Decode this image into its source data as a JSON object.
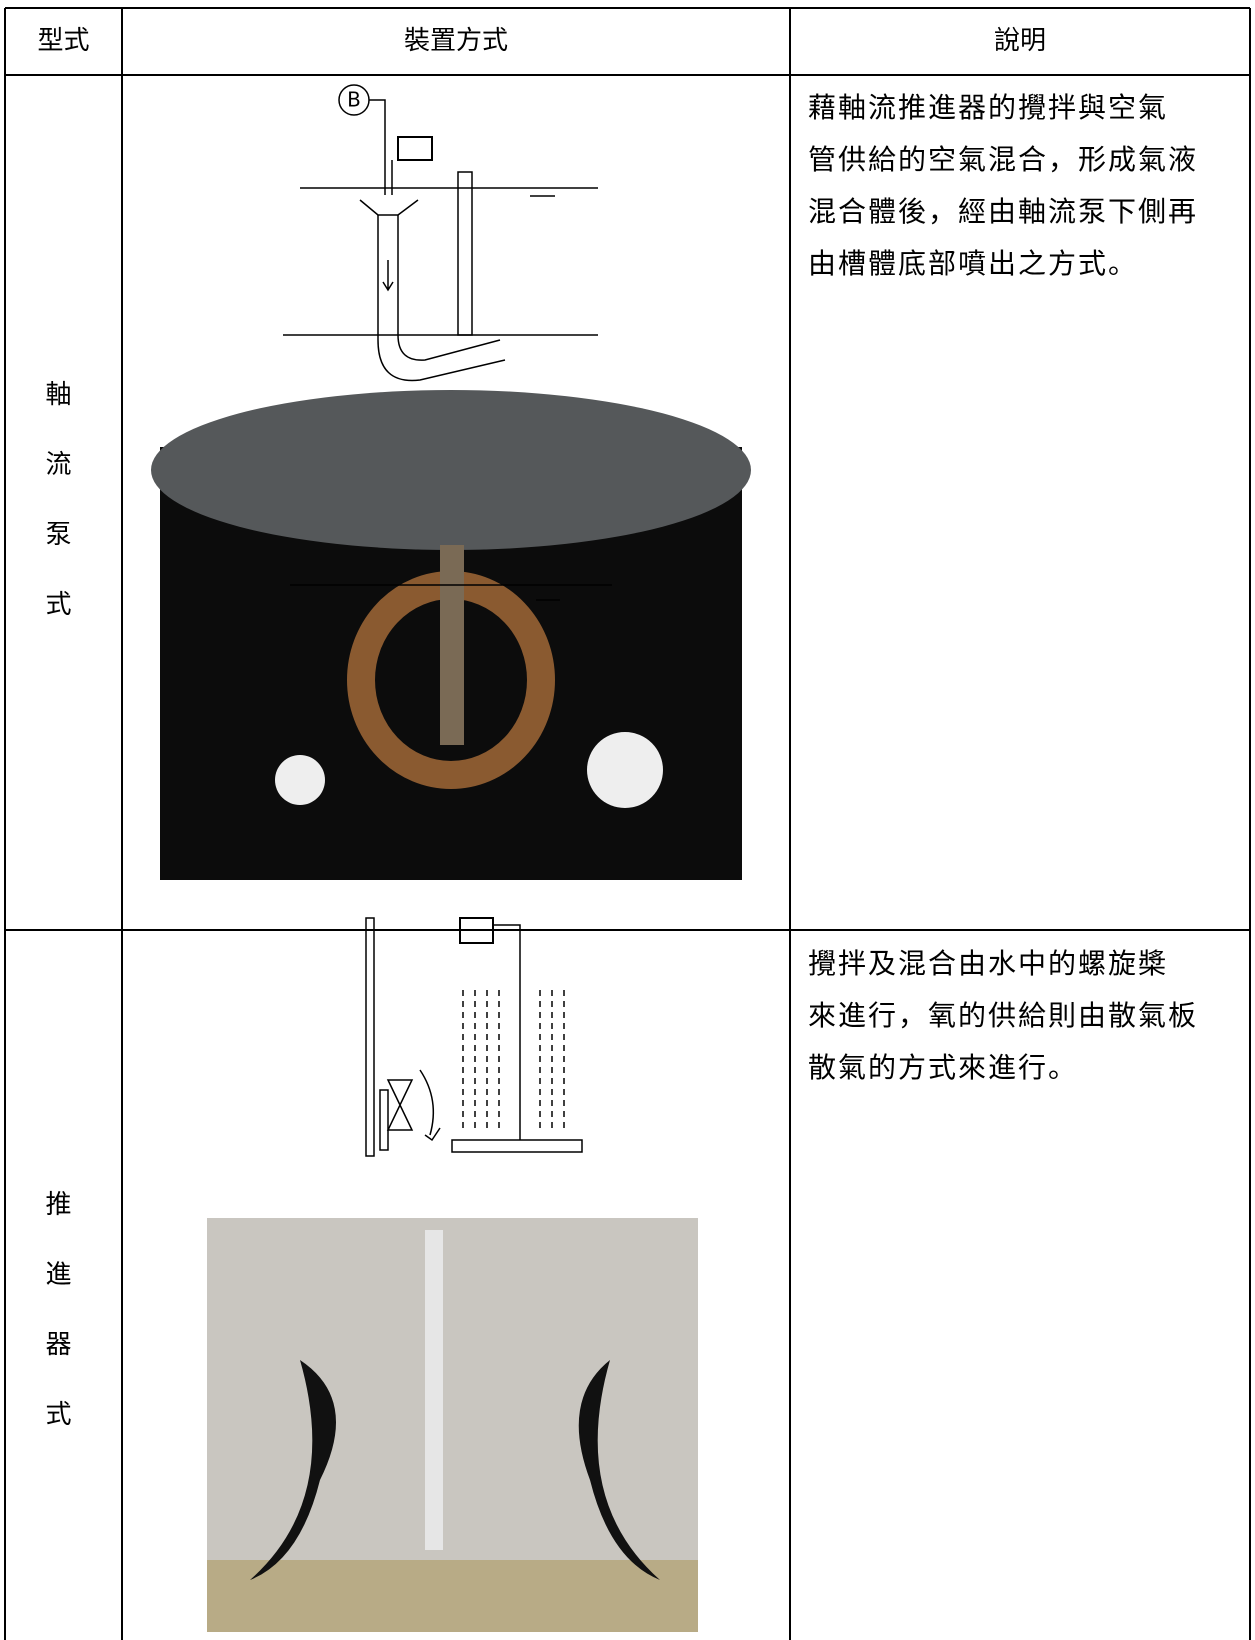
{
  "table": {
    "header": [
      "型式",
      "裝置方式",
      "說明"
    ],
    "rows": [
      {
        "type": "軸流泵式",
        "diagram_label": "B",
        "description": [
          "藉軸流推進器的攪拌與空氣",
          "管供給的空氣混合，形成氣液",
          "混合體後，經由軸流泵下側再",
          "由槽體底部噴出之方式。"
        ]
      },
      {
        "type": "推進器式",
        "description": [
          "攪拌及混合由水中的螺旋槳",
          "來進行，氧的供給則由散氣板",
          "散氣的方式來進行。"
        ]
      }
    ]
  }
}
